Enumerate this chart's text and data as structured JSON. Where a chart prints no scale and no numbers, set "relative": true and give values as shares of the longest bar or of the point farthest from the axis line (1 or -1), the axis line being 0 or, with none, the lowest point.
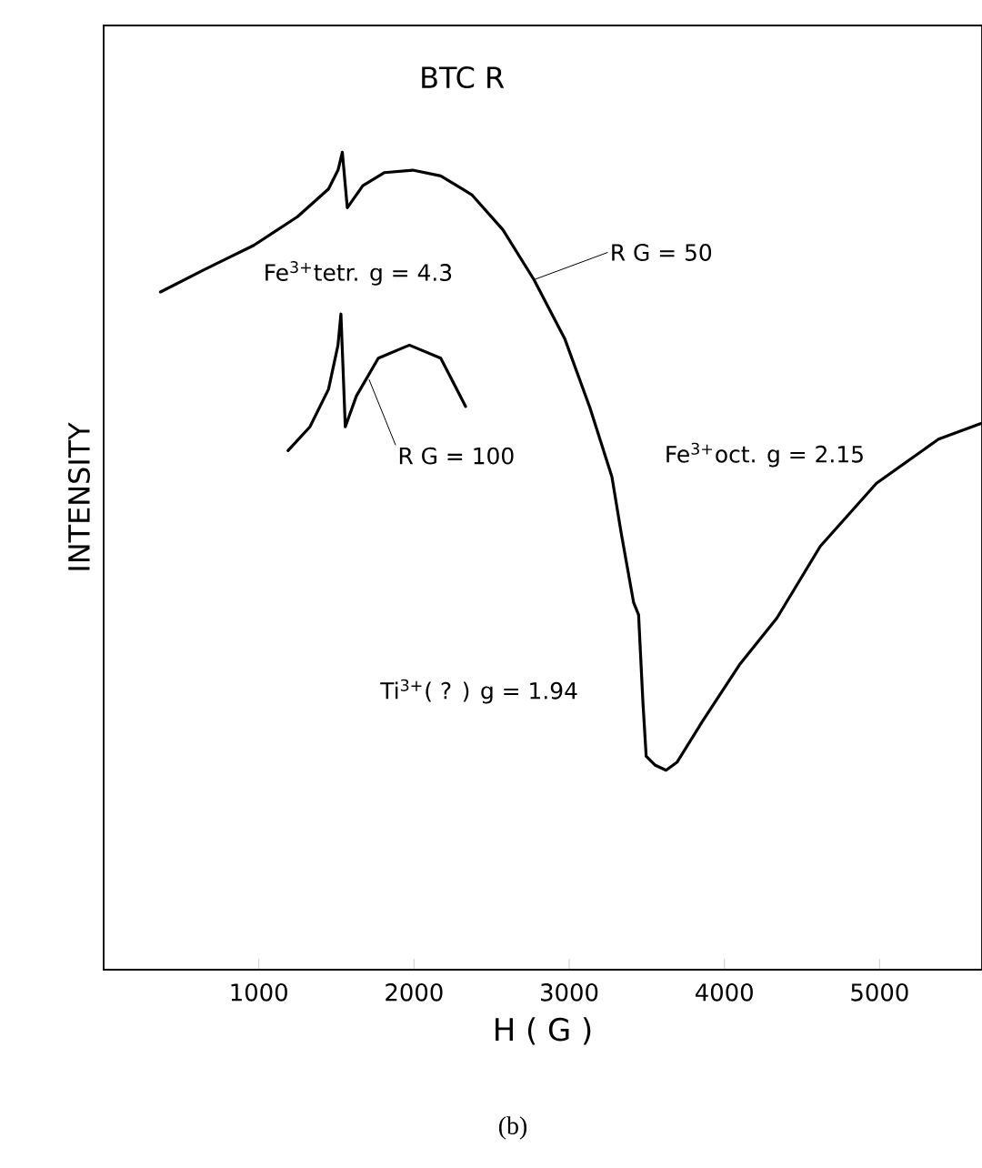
{
  "chart_data": {
    "type": "line",
    "title": "BTC R",
    "xlabel": "H ( G )",
    "ylabel": "INTENSITY",
    "relative": true,
    "xlim": [
      0,
      5660
    ],
    "xticks": [
      1000,
      2000,
      3000,
      4000,
      5000
    ],
    "marker": "none",
    "line_style": "solid",
    "grid": false,
    "tick_labels": "x",
    "series": [
      {
        "color": "#000000",
        "x": [
          366,
          646,
          967,
          1249,
          1449,
          1510,
          1538,
          1570,
          1670,
          1810,
          1991,
          2172,
          2372,
          2573,
          2773,
          2973,
          3134,
          3275,
          3335,
          3415,
          3447,
          3475,
          3496,
          3555,
          3624,
          3696,
          3856,
          4097,
          4338,
          4618,
          4980,
          5380,
          5650
        ],
        "values": [
          0.829,
          0.856,
          0.886,
          0.921,
          0.955,
          0.978,
          1.0,
          0.932,
          0.959,
          0.975,
          0.978,
          0.971,
          0.948,
          0.905,
          0.844,
          0.771,
          0.687,
          0.603,
          0.534,
          0.449,
          0.434,
          0.327,
          0.261,
          0.25,
          0.244,
          0.254,
          0.303,
          0.373,
          0.43,
          0.518,
          0.595,
          0.649,
          0.668
        ]
      },
      {
        "color": "#000000",
        "x": [
          1188,
          1329,
          1449,
          1510,
          1529,
          1557,
          1629,
          1770,
          1970,
          2172,
          2332
        ],
        "values": [
          0.635,
          0.664,
          0.71,
          0.764,
          0.802,
          0.664,
          0.702,
          0.748,
          0.764,
          0.748,
          0.689
        ]
      }
    ],
    "annotations": [
      {
        "text": "Fe$^{3+}$tetr.  g = 4.3",
        "x": 1570,
        "y": 0.932
      },
      {
        "text": "R G = 50",
        "x": 2773,
        "y": 0.844
      },
      {
        "text": "R G = 100",
        "x": 1710,
        "y": 0.722
      },
      {
        "text": "Fe$^{3+}$oct.  g = 2.15",
        "x": 3275,
        "y": 0.603
      },
      {
        "text": "Ti$^{3+}$( ? )  g = 1.94",
        "x": 3475,
        "y": 0.327
      },
      "(b)"
    ]
  }
}
